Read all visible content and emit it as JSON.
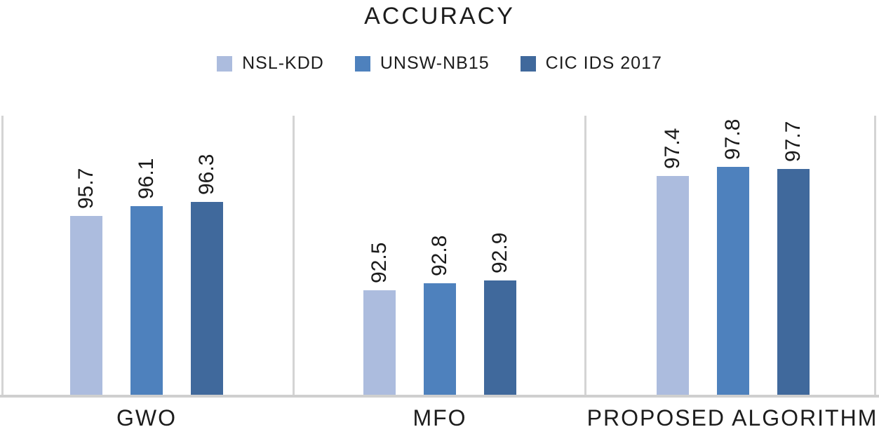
{
  "title": "ACCURACY",
  "legend": [
    {
      "label": "NSL-KDD",
      "color": "#acbcde"
    },
    {
      "label": "UNSW-NB15",
      "color": "#4e81bd"
    },
    {
      "label": "CIC IDS 2017",
      "color": "#40699c"
    }
  ],
  "chart_data": {
    "type": "bar",
    "title": "ACCURACY",
    "categories": [
      "GWO",
      "MFO",
      "PROPOSED ALGORITHM"
    ],
    "series": [
      {
        "name": "NSL-KDD",
        "color": "#acbcde",
        "values": [
          95.7,
          92.5,
          97.4
        ]
      },
      {
        "name": "UNSW-NB15",
        "color": "#4e81bd",
        "values": [
          96.1,
          92.8,
          97.8
        ]
      },
      {
        "name": "CIC IDS 2017",
        "color": "#40699c",
        "values": [
          96.3,
          92.9,
          97.7
        ]
      }
    ],
    "ylim": [
      88,
      100
    ],
    "grid": false,
    "y_axis_visible": false,
    "legend_position": "top",
    "data_labels": {
      "visible": true,
      "rotation": -90,
      "decimals": 1
    }
  }
}
